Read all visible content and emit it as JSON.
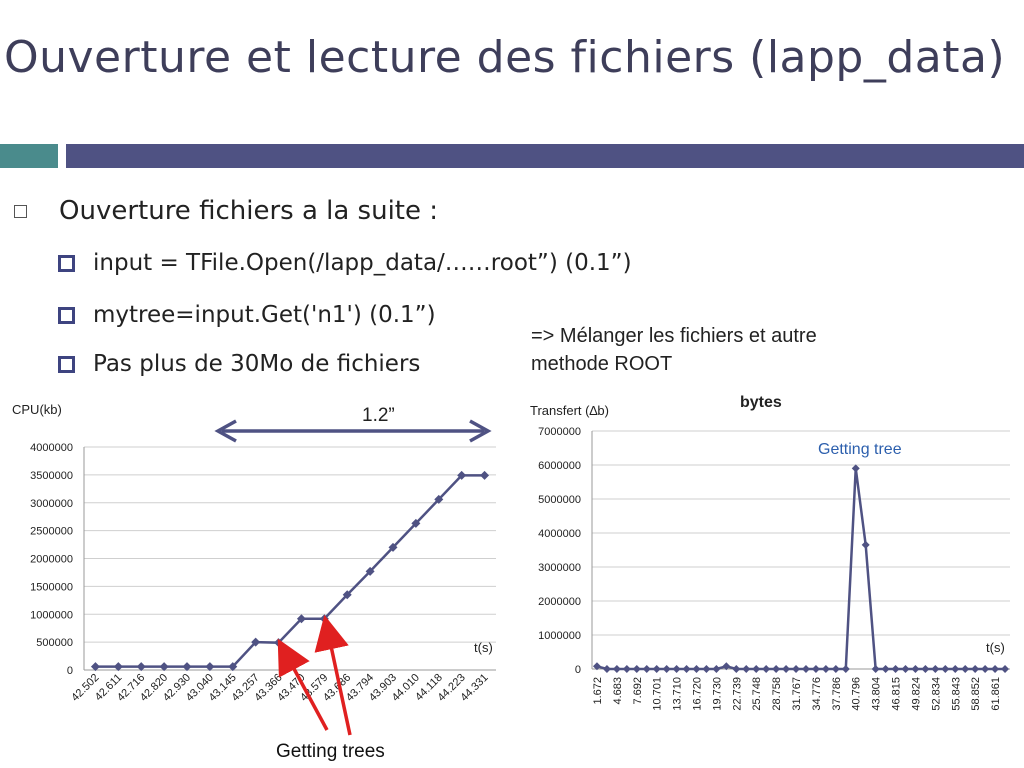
{
  "slide": {
    "title": "Ouverture et lecture des fichiers (lapp_data)",
    "bullet": "Ouverture fichiers a la suite :",
    "subbullets": [
      "input = TFile.Open(/lapp_data/……root”) (0.1”)",
      "mytree=input.Get('n1') (0.1”)",
      "Pas plus de 30Mo de fichiers"
    ],
    "note_line1": "=> Mélanger les fichiers et autre",
    "note_line2": "methode ROOT",
    "interval_label": "1.2”",
    "getting_trees_label": "Getting trees",
    "getting_tree_label": "Getting tree",
    "colors": {
      "series": "#4f5283",
      "arrow": "#4f5283",
      "red_arrow": "#e02020",
      "teal": "#4a8b8c",
      "annotation_blue": "#2c5fad"
    }
  },
  "chart_data": [
    {
      "type": "line",
      "title": "",
      "ylabel": "CPU(kb)",
      "xlabel": "t(s)",
      "ylim": [
        0,
        4000000
      ],
      "yticks": [
        "4000000",
        "3500000",
        "3000000",
        "2500000",
        "2000000",
        "1500000",
        "1000000",
        "500000",
        "0"
      ],
      "categories": [
        "42.502",
        "42.611",
        "42.716",
        "42.820",
        "42.930",
        "43.040",
        "43.145",
        "43.257",
        "43.366",
        "43.470",
        "43.579",
        "43.686",
        "43.794",
        "43.903",
        "44.010",
        "44.118",
        "44.223",
        "44.331"
      ],
      "values": [
        60000,
        60000,
        60000,
        60000,
        60000,
        60000,
        60000,
        500000,
        490000,
        920000,
        920000,
        1350000,
        1770000,
        2200000,
        2630000,
        3060000,
        3490000,
        3490000
      ]
    },
    {
      "type": "line",
      "title": "bytes",
      "ylabel": "Transfert (∆b)",
      "xlabel": "t(s)",
      "ylim": [
        0,
        7000000
      ],
      "yticks": [
        "7000000",
        "6000000",
        "5000000",
        "4000000",
        "3000000",
        "2000000",
        "1000000",
        "0"
      ],
      "x_tick_labels": [
        "1.672",
        "4.683",
        "7.692",
        "10.701",
        "13.710",
        "16.720",
        "19.730",
        "22.739",
        "25.748",
        "28.758",
        "31.767",
        "34.776",
        "37.786",
        "40.796",
        "43.804",
        "46.815",
        "49.824",
        "52.834",
        "55.843",
        "58.852",
        "61.861"
      ],
      "values": [
        80000,
        0,
        0,
        0,
        0,
        0,
        0,
        0,
        0,
        0,
        0,
        0,
        0,
        80000,
        0,
        0,
        0,
        0,
        0,
        0,
        0,
        0,
        0,
        0,
        0,
        0,
        5900000,
        3650000,
        0,
        0,
        0,
        0,
        0,
        0,
        0,
        0,
        0,
        0,
        0,
        0,
        0,
        0
      ]
    }
  ]
}
